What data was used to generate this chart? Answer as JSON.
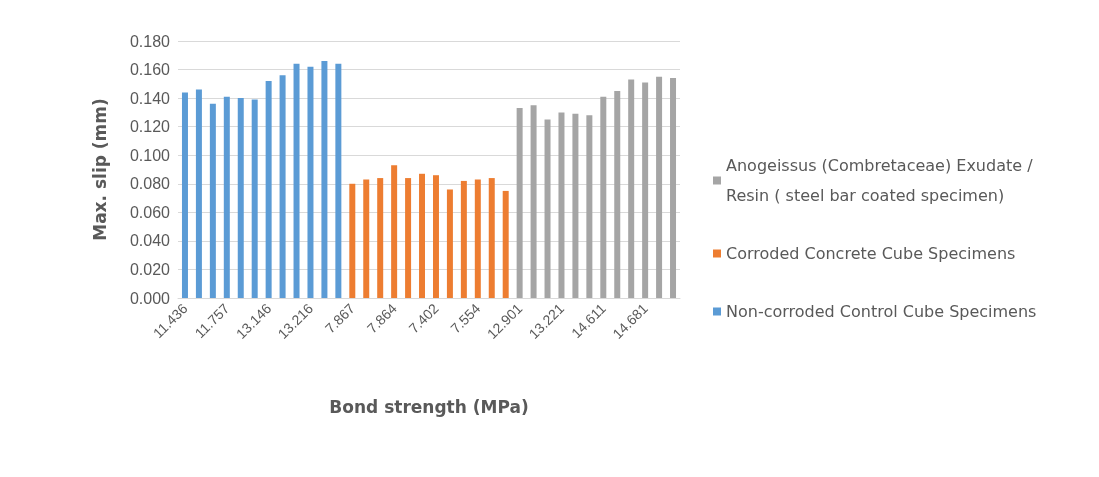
{
  "chart_data": {
    "type": "bar",
    "xlabel": "Bond strength (MPa)",
    "ylabel": "Max. slip (mm)",
    "categories": [
      "11.436",
      null,
      null,
      "11.757",
      null,
      null,
      "13.146",
      null,
      null,
      "13.216",
      null,
      null,
      "7.867",
      null,
      null,
      "7.864",
      null,
      null,
      "7.402",
      null,
      null,
      "7.554",
      null,
      null,
      "12.901",
      null,
      null,
      "13.221",
      null,
      null,
      "14.611",
      null,
      null,
      "14.681",
      null,
      null
    ],
    "series": [
      {
        "name": "Non-corroded Control Cube Specimens",
        "color": "#5b9bd5",
        "values": [
          0.144,
          0.146,
          0.136,
          0.141,
          0.14,
          0.139,
          0.152,
          0.156,
          0.164,
          0.162,
          0.166,
          0.164,
          null,
          null,
          null,
          null,
          null,
          null,
          null,
          null,
          null,
          null,
          null,
          null,
          null,
          null,
          null,
          null,
          null,
          null,
          null,
          null,
          null,
          null,
          null,
          null
        ]
      },
      {
        "name": "Corroded Concrete Cube Specimens",
        "color": "#ed7d31",
        "values": [
          null,
          null,
          null,
          null,
          null,
          null,
          null,
          null,
          null,
          null,
          null,
          null,
          0.08,
          0.083,
          0.084,
          0.093,
          0.084,
          0.087,
          0.086,
          0.076,
          0.082,
          0.083,
          0.084,
          0.075,
          null,
          null,
          null,
          null,
          null,
          null,
          null,
          null,
          null,
          null,
          null,
          null
        ]
      },
      {
        "name": "Anogeissus (Combretaceae) Exudate / Resin ( steel bar coated specimen)",
        "color": "#a5a5a5",
        "values": [
          null,
          null,
          null,
          null,
          null,
          null,
          null,
          null,
          null,
          null,
          null,
          null,
          null,
          null,
          null,
          null,
          null,
          null,
          null,
          null,
          null,
          null,
          null,
          null,
          0.133,
          0.135,
          0.125,
          0.13,
          0.129,
          0.128,
          0.141,
          0.145,
          0.153,
          0.151,
          0.155,
          0.154
        ]
      }
    ],
    "ylim": [
      0,
      0.18
    ],
    "yticks": [
      {
        "value": 0,
        "label": "0.000"
      },
      {
        "value": 0.02,
        "label": "0.020"
      },
      {
        "value": 0.04,
        "label": "0.040"
      },
      {
        "value": 0.06,
        "label": "0.060"
      },
      {
        "value": 0.08,
        "label": "0.080"
      },
      {
        "value": 0.1,
        "label": "0.100"
      },
      {
        "value": 0.12,
        "label": "0.120"
      },
      {
        "value": 0.14,
        "label": "0.140"
      },
      {
        "value": 0.16,
        "label": "0.160"
      },
      {
        "value": 0.18,
        "label": "0.180"
      }
    ],
    "grid": "y",
    "legend": "right"
  }
}
